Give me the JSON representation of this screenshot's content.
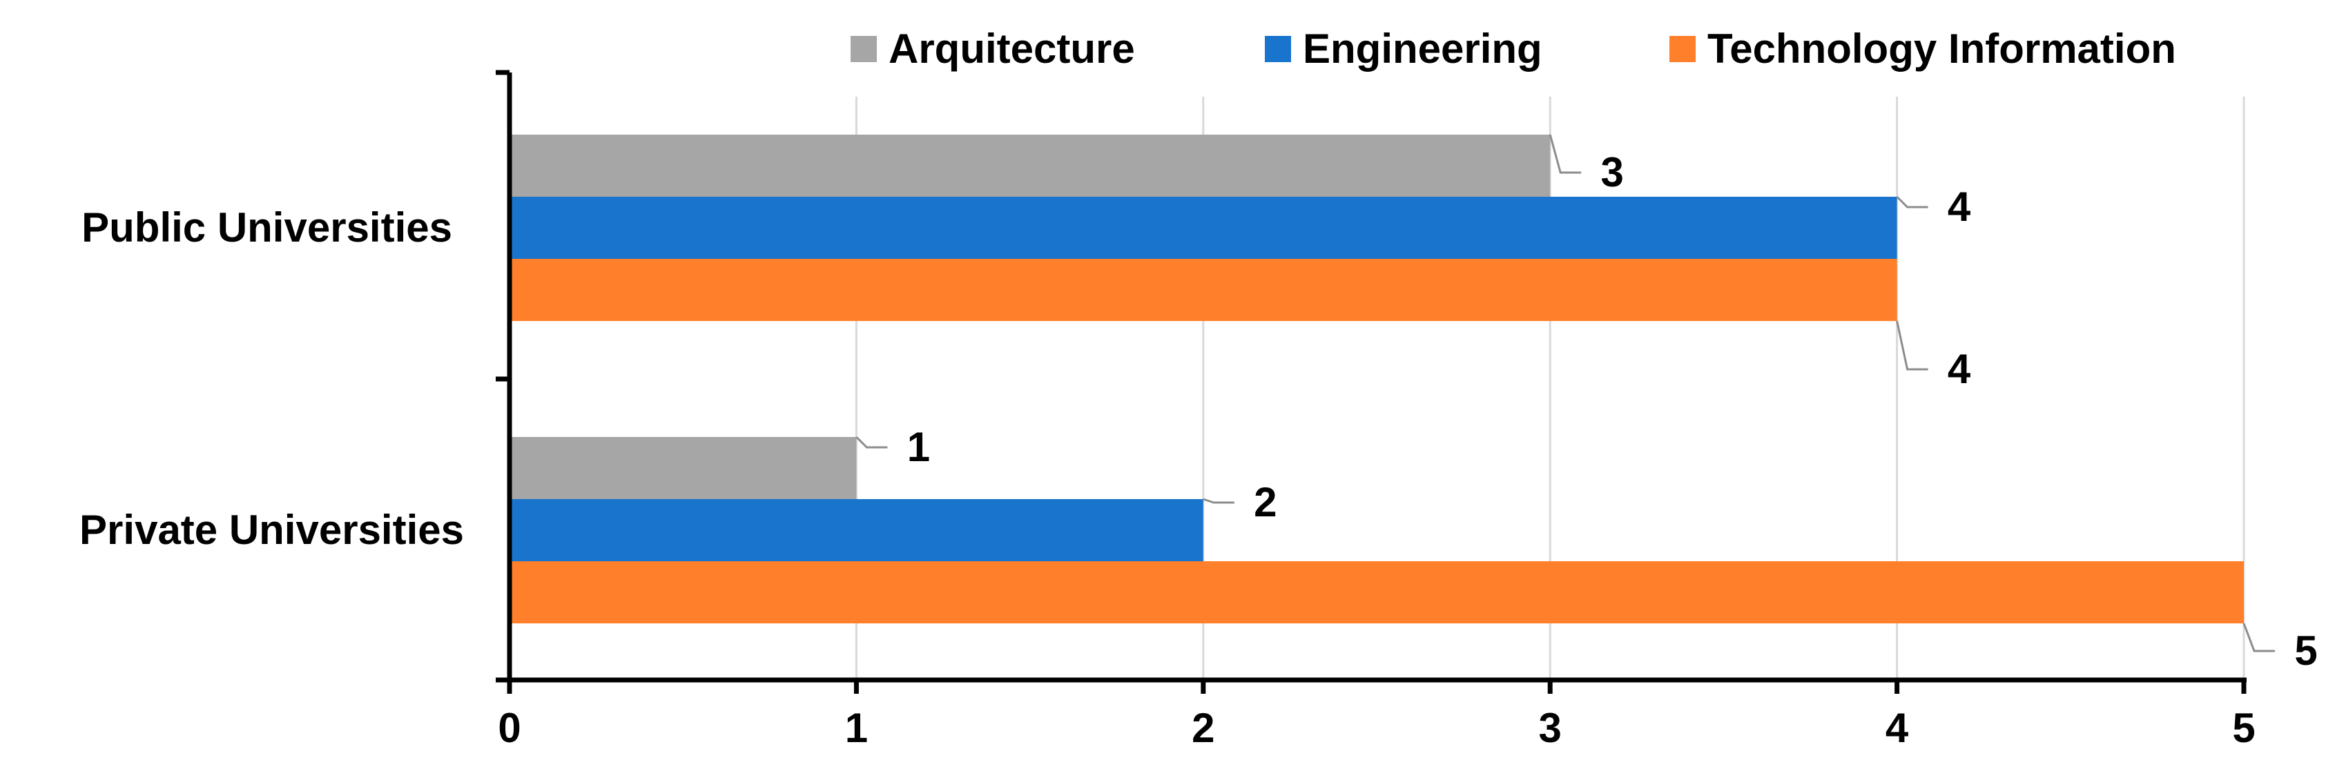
{
  "chart_data": {
    "type": "bar",
    "orientation": "horizontal",
    "title": "",
    "xlabel": "",
    "ylabel": "",
    "xlim": [
      0,
      5
    ],
    "x_ticks": [
      0,
      1,
      2,
      3,
      4,
      5
    ],
    "grid": true,
    "legend_position": "top-right",
    "categories": [
      "Public Universities",
      "Private Universities"
    ],
    "series": [
      {
        "name": "Arquitecture",
        "color": "#a6a6a6",
        "values": [
          3,
          1
        ]
      },
      {
        "name": "Engineering",
        "color": "#1874cd",
        "values": [
          4,
          2
        ]
      },
      {
        "name": "Technology Information",
        "color": "#ff7f2a",
        "values": [
          4,
          5
        ]
      }
    ],
    "data_labels": true
  }
}
